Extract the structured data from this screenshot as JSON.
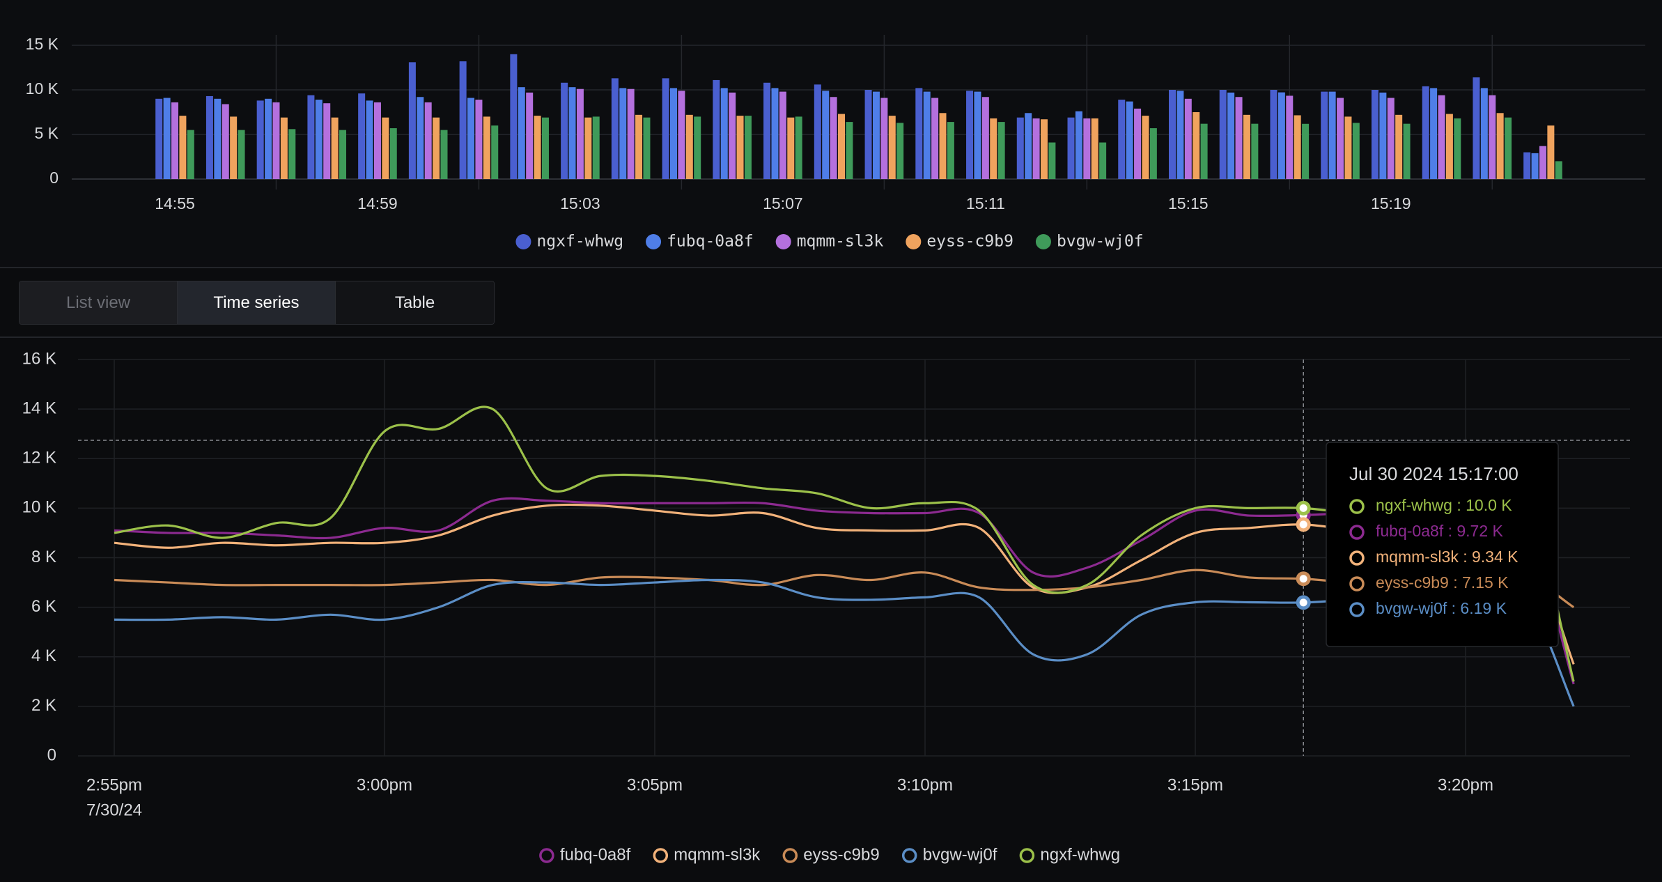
{
  "chart_data": [
    {
      "type": "bar",
      "categories": [
        "14:55",
        null,
        null,
        null,
        "14:59",
        null,
        null,
        null,
        "15:03",
        null,
        null,
        null,
        "15:07",
        null,
        null,
        null,
        "15:11",
        null,
        null,
        null,
        "15:15",
        null,
        null,
        null,
        "15:19",
        null,
        null,
        null
      ],
      "ylim": [
        0,
        15000
      ],
      "yticks": [
        {
          "value": 0,
          "label": "0"
        },
        {
          "value": 5000,
          "label": "5 K"
        },
        {
          "value": 10000,
          "label": "10 K"
        },
        {
          "value": 15000,
          "label": "15 K"
        }
      ],
      "grid": true,
      "series": [
        {
          "name": "ngxf-whwg",
          "color": "#4a5fd0",
          "values": [
            9000,
            9300,
            8800,
            9400,
            9600,
            13100,
            13200,
            14000,
            10800,
            11300,
            11300,
            11100,
            10800,
            10600,
            10000,
            10200,
            9900,
            6900,
            6900,
            8900,
            10000,
            10000,
            10000,
            9800,
            10000,
            10400,
            11400,
            3000
          ]
        },
        {
          "name": "fubq-0a8f",
          "color": "#4f7ee8",
          "values": [
            9100,
            9000,
            9000,
            8900,
            8800,
            9200,
            9100,
            10300,
            10300,
            10200,
            10200,
            10200,
            10200,
            9900,
            9800,
            9800,
            9800,
            7400,
            7600,
            8700,
            9900,
            9700,
            9720,
            9800,
            9700,
            10200,
            10200,
            2900
          ]
        },
        {
          "name": "mqmm-sl3k",
          "color": "#b470de",
          "values": [
            8600,
            8400,
            8600,
            8500,
            8600,
            8600,
            8900,
            9700,
            10100,
            10100,
            9900,
            9700,
            9800,
            9200,
            9100,
            9100,
            9200,
            6800,
            6800,
            7900,
            9000,
            9200,
            9340,
            9100,
            9100,
            9400,
            9400,
            3700
          ]
        },
        {
          "name": "eyss-c9b9",
          "color": "#f0a35e",
          "values": [
            7100,
            7000,
            6900,
            6900,
            6900,
            6900,
            7000,
            7100,
            6900,
            7200,
            7200,
            7100,
            6900,
            7300,
            7100,
            7400,
            6800,
            6700,
            6800,
            7100,
            7500,
            7200,
            7150,
            7000,
            7200,
            7300,
            7400,
            6000
          ]
        },
        {
          "name": "bvgw-wj0f",
          "color": "#3f9a5a",
          "values": [
            5500,
            5500,
            5600,
            5500,
            5700,
            5500,
            6000,
            6900,
            7000,
            6900,
            7000,
            7100,
            7000,
            6400,
            6300,
            6400,
            6400,
            4100,
            4100,
            5700,
            6200,
            6200,
            6190,
            6300,
            6200,
            6800,
            6900,
            2000
          ]
        }
      ]
    },
    {
      "type": "line",
      "categories": [
        "2:55pm",
        null,
        null,
        null,
        null,
        "3:00pm",
        null,
        null,
        null,
        null,
        "3:05pm",
        null,
        null,
        null,
        null,
        "3:10pm",
        null,
        null,
        null,
        null,
        "3:15pm",
        null,
        null,
        null,
        null,
        "3:20pm",
        null,
        null
      ],
      "date_label": "7/30/24",
      "ylim": [
        0,
        16000
      ],
      "yticks": [
        {
          "value": 0,
          "label": "0"
        },
        {
          "value": 2000,
          "label": "2 K"
        },
        {
          "value": 4000,
          "label": "4 K"
        },
        {
          "value": 6000,
          "label": "6 K"
        },
        {
          "value": 8000,
          "label": "8 K"
        },
        {
          "value": 10000,
          "label": "10 K"
        },
        {
          "value": 12000,
          "label": "12 K"
        },
        {
          "value": 14000,
          "label": "14 K"
        },
        {
          "value": 16000,
          "label": "16 K"
        }
      ],
      "grid": true,
      "series": [
        {
          "name": "fubq-0a8f",
          "color": "#8c2a90",
          "values": [
            9100,
            9000,
            9000,
            8900,
            8800,
            9200,
            9100,
            10300,
            10300,
            10200,
            10200,
            10200,
            10200,
            9900,
            9800,
            9800,
            9800,
            7400,
            7600,
            8700,
            9900,
            9700,
            9720,
            9800,
            9700,
            10200,
            10200,
            2900
          ]
        },
        {
          "name": "mqmm-sl3k",
          "color": "#f2b27a",
          "values": [
            8600,
            8400,
            8600,
            8500,
            8600,
            8600,
            8900,
            9700,
            10100,
            10100,
            9900,
            9700,
            9800,
            9200,
            9100,
            9100,
            9200,
            6800,
            6800,
            7900,
            9000,
            9200,
            9340,
            9100,
            9100,
            9400,
            9400,
            3700
          ]
        },
        {
          "name": "eyss-c9b9",
          "color": "#c98b57",
          "values": [
            7100,
            7000,
            6900,
            6900,
            6900,
            6900,
            7000,
            7100,
            6900,
            7200,
            7200,
            7100,
            6900,
            7300,
            7100,
            7400,
            6800,
            6700,
            6800,
            7100,
            7500,
            7200,
            7150,
            7000,
            7200,
            7300,
            7400,
            6000
          ]
        },
        {
          "name": "bvgw-wj0f",
          "color": "#5b8ec6",
          "values": [
            5500,
            5500,
            5600,
            5500,
            5700,
            5500,
            6000,
            6900,
            7000,
            6900,
            7000,
            7100,
            7000,
            6400,
            6300,
            6400,
            6400,
            4100,
            4100,
            5700,
            6200,
            6200,
            6190,
            6300,
            6200,
            6800,
            6900,
            2000
          ]
        },
        {
          "name": "ngxf-whwg",
          "color": "#9cc14a",
          "values": [
            9000,
            9300,
            8800,
            9400,
            9600,
            13100,
            13200,
            14000,
            10800,
            11300,
            11300,
            11100,
            10800,
            10600,
            10000,
            10200,
            9900,
            6900,
            6900,
            8900,
            10000,
            10000,
            10000,
            9800,
            10000,
            10400,
            11400,
            3000
          ]
        }
      ]
    }
  ],
  "tabs": [
    "List view",
    "Time series",
    "Table"
  ],
  "tooltip": {
    "title": "Jul 30 2024 15:17:00",
    "items": [
      {
        "text": "ngxf-whwg : 10.0 K",
        "color": "#9cc14a"
      },
      {
        "text": "fubq-0a8f : 9.72 K",
        "color": "#8c2a90"
      },
      {
        "text": "mqmm-sl3k : 9.34 K",
        "color": "#f2b27a"
      },
      {
        "text": "eyss-c9b9 : 7.15 K",
        "color": "#c98b57"
      },
      {
        "text": "bvgw-wj0f : 6.19 K",
        "color": "#5b8ec6"
      }
    ]
  }
}
